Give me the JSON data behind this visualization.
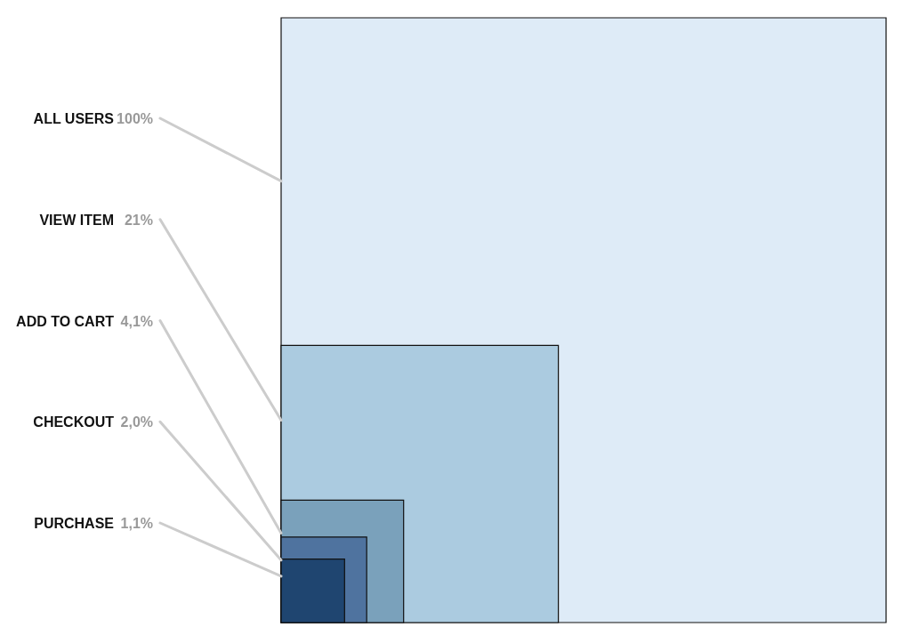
{
  "chart_data": {
    "type": "other",
    "categories": [
      "ALL USERS",
      "VIEW ITEM",
      "ADD TO CART",
      "CHECKOUT",
      "PURCHASE"
    ],
    "values": [
      100,
      21,
      4.1,
      2.0,
      1.1
    ],
    "value_labels": [
      "100%",
      "21%",
      "4,1%",
      "2,0%",
      "1,1%"
    ],
    "colors": [
      "#deebf7",
      "#abcbe0",
      "#7aa1bb",
      "#4f739f",
      "#1f4570"
    ]
  }
}
